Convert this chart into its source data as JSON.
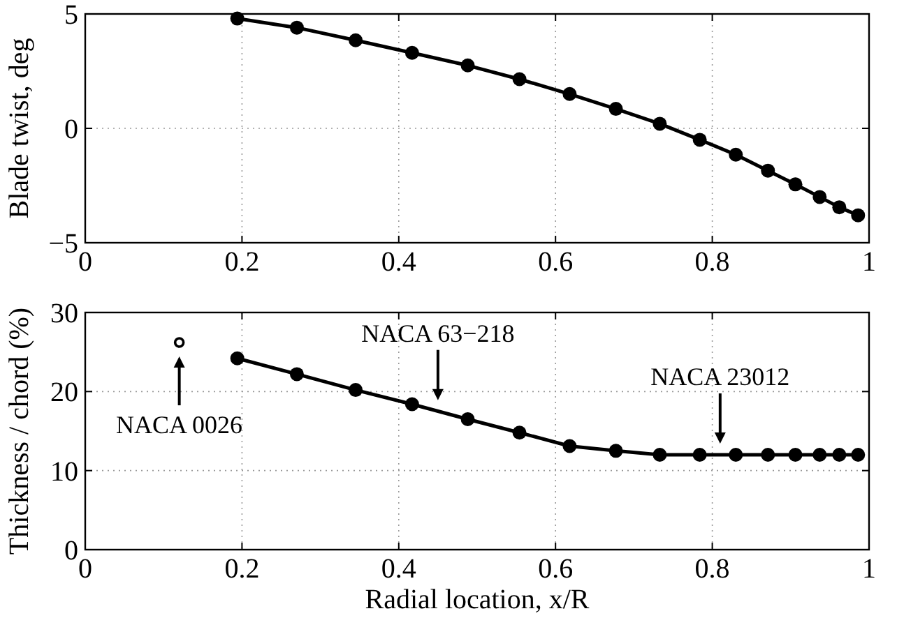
{
  "chart_data": [
    {
      "type": "line",
      "ylabel": "Blade twist, deg",
      "xlim": [
        0,
        1
      ],
      "xticks": [
        0,
        0.2,
        0.4,
        0.6,
        0.8,
        1
      ],
      "ylim": [
        -5,
        5
      ],
      "yticks": [
        -5,
        0,
        5
      ],
      "grid": true,
      "marker": "circle",
      "line_style": "solid",
      "series": [
        {
          "color": "#000000",
          "x": [
            0.194,
            0.27,
            0.345,
            0.417,
            0.488,
            0.554,
            0.618,
            0.677,
            0.733,
            0.784,
            0.83,
            0.871,
            0.906,
            0.937,
            0.962,
            0.986
          ],
          "values": [
            4.8,
            4.4,
            3.85,
            3.3,
            2.75,
            2.15,
            1.5,
            0.85,
            0.2,
            -0.5,
            -1.15,
            -1.85,
            -2.45,
            -3.0,
            -3.45,
            -3.8
          ]
        }
      ]
    },
    {
      "type": "line",
      "xlabel": "Radial location, x/R",
      "ylabel": "Thickness  / chord (%)",
      "xlim": [
        0,
        1
      ],
      "xticks": [
        0,
        0.2,
        0.4,
        0.6,
        0.8,
        1
      ],
      "ylim": [
        0,
        30
      ],
      "yticks": [
        0,
        10,
        20,
        30
      ],
      "grid": true,
      "marker": "circle",
      "line_style": "solid",
      "series": [
        {
          "color": "#000000",
          "x": [
            0.194,
            0.27,
            0.345,
            0.417,
            0.488,
            0.554,
            0.618,
            0.677,
            0.733,
            0.784,
            0.83,
            0.871,
            0.906,
            0.937,
            0.962,
            0.986
          ],
          "values": [
            24.2,
            22.2,
            20.2,
            18.4,
            16.5,
            14.8,
            13.1,
            12.5,
            12,
            12,
            12,
            12,
            12,
            12,
            12,
            12
          ]
        },
        {
          "type": "scatter",
          "color": "#000000",
          "x": [
            0.12
          ],
          "values": [
            26.2
          ]
        }
      ],
      "annotations": [
        {
          "text": "NACA 0026",
          "x": 0.12,
          "y": 26.2
        },
        {
          "text": "NACA 63−218",
          "x": 0.45,
          "y": 17.5
        },
        {
          "text": "NACA 23012",
          "x": 0.81,
          "y": 12
        }
      ]
    }
  ]
}
